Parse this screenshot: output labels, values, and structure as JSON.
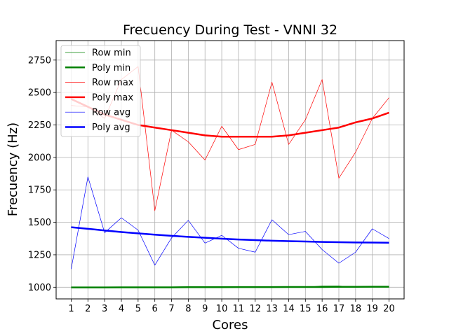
{
  "chart_data": {
    "type": "line",
    "title": "Frecuency During Test - VNNI 32",
    "xlabel": "Cores",
    "ylabel": "Frecuency (Hz)",
    "x": [
      1,
      2,
      3,
      4,
      5,
      6,
      7,
      8,
      9,
      10,
      11,
      12,
      13,
      14,
      15,
      16,
      17,
      18,
      19,
      20
    ],
    "xlim": [
      0.1,
      20.9
    ],
    "ylim": [
      910,
      2900
    ],
    "yticks": [
      1000,
      1250,
      1500,
      1750,
      2000,
      2250,
      2500,
      2750
    ],
    "grid": true,
    "legend_position": "top-left",
    "series": [
      {
        "name": "Row min",
        "color": "#008000",
        "style": "thin",
        "values": [
          1000,
          1000,
          1000,
          1000,
          1000,
          1000,
          1000,
          1000,
          1000,
          1000,
          1000,
          1000,
          1000,
          1000,
          1000,
          1010,
          1010,
          1000,
          1000,
          1000
        ]
      },
      {
        "name": "Poly min",
        "color": "#008000",
        "style": "thick",
        "values": [
          998,
          998,
          998,
          999,
          999,
          999,
          999,
          1000,
          1000,
          1000,
          1001,
          1001,
          1001,
          1002,
          1002,
          1002,
          1003,
          1003,
          1004,
          1004
        ]
      },
      {
        "name": "Row max",
        "color": "#ff0000",
        "style": "thin",
        "values": [
          2400,
          2390,
          2300,
          2600,
          2700,
          1590,
          2210,
          2120,
          1980,
          2240,
          2060,
          2100,
          2580,
          2100,
          2290,
          2600,
          1840,
          2040,
          2300,
          2460
        ]
      },
      {
        "name": "Poly max",
        "color": "#ff0000",
        "style": "thick",
        "values": [
          2450,
          2390,
          2330,
          2290,
          2250,
          2230,
          2210,
          2190,
          2170,
          2160,
          2160,
          2160,
          2160,
          2170,
          2190,
          2210,
          2230,
          2270,
          2300,
          2345
        ]
      },
      {
        "name": "Row avg",
        "color": "#0000ff",
        "style": "thin",
        "values": [
          1140,
          1850,
          1420,
          1535,
          1440,
          1170,
          1380,
          1515,
          1340,
          1400,
          1300,
          1270,
          1520,
          1405,
          1430,
          1290,
          1185,
          1270,
          1450,
          1375
        ]
      },
      {
        "name": "Poly avg",
        "color": "#0000ff",
        "style": "thick",
        "values": [
          1462,
          1450,
          1437,
          1425,
          1415,
          1405,
          1396,
          1388,
          1381,
          1374,
          1368,
          1363,
          1358,
          1355,
          1352,
          1349,
          1347,
          1345,
          1344,
          1343
        ]
      }
    ]
  }
}
